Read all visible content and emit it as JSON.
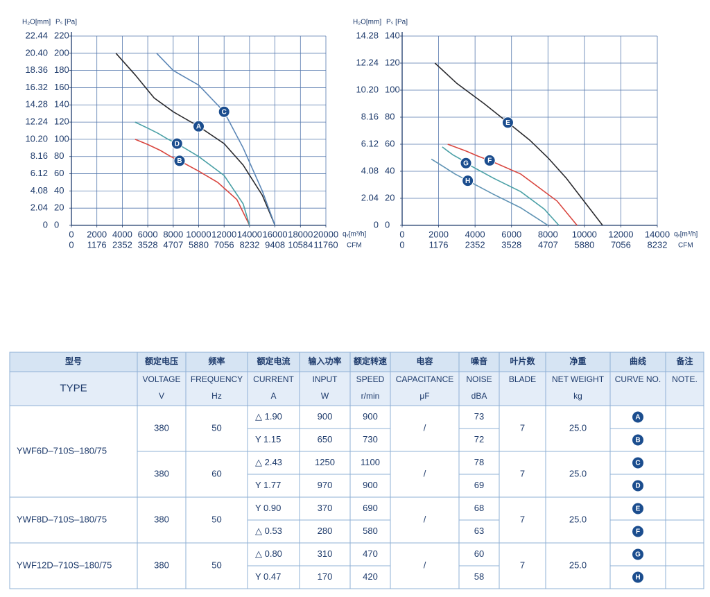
{
  "chart_data": [
    {
      "type": "line",
      "x_label": "qᵥ[m³/h]",
      "x2_label": "CFM",
      "y_label": "Pₛ [Pa]",
      "y2_label": "H₂O[mm]",
      "xlim": [
        0,
        20000
      ],
      "xticks": [
        0,
        2000,
        4000,
        6000,
        8000,
        10000,
        12000,
        14000,
        16000,
        18000,
        20000
      ],
      "x2lim": [
        0,
        11760
      ],
      "x2ticks": [
        0,
        1176,
        2352,
        3528,
        4707,
        5880,
        7056,
        8232,
        9408,
        10584,
        11760
      ],
      "ylim": [
        0,
        220
      ],
      "yticks": [
        0,
        20,
        40,
        60,
        80,
        100,
        120,
        140,
        160,
        180,
        200,
        220
      ],
      "y2lim": [
        0,
        22.44
      ],
      "y2ticks": [
        0,
        2.04,
        4.08,
        6.12,
        8.16,
        {
          "value": 10.2,
          "label": "10.20"
        },
        12.24,
        14.28,
        16.32,
        18.36,
        {
          "value": 20.4,
          "label": "20.40"
        },
        22.44
      ],
      "grid": true,
      "series": [
        {
          "name": "A",
          "color": "#2a2a2e",
          "x": [
            3500,
            5000,
            6500,
            8000,
            10000,
            12000,
            13500,
            15000,
            16000
          ],
          "values": [
            200,
            175,
            148,
            132,
            115,
            95,
            70,
            35,
            0
          ]
        },
        {
          "name": "B",
          "color": "#d9463f",
          "x": [
            5000,
            6000,
            7000,
            7800,
            8500,
            10000,
            11500,
            13000,
            14000
          ],
          "values": [
            100,
            94,
            87,
            80,
            75,
            63,
            50,
            30,
            0
          ]
        },
        {
          "name": "C",
          "color": "#5b86b6",
          "x": [
            6700,
            8000,
            10000,
            12000,
            13500,
            15000,
            16000
          ],
          "values": [
            200,
            180,
            163,
            132,
            90,
            40,
            0
          ]
        },
        {
          "name": "D",
          "color": "#4aa0a6",
          "x": [
            5000,
            6000,
            6800,
            7600,
            8300,
            10000,
            12000,
            13500,
            14000
          ],
          "values": [
            120,
            113,
            107,
            100,
            95,
            80,
            58,
            25,
            0
          ]
        }
      ]
    },
    {
      "type": "line",
      "x_label": "qᵥ[m³/h]",
      "x2_label": "CFM",
      "y_label": "Pₛ [Pa]",
      "y2_label": "H₂O[mm]",
      "xlim": [
        0,
        14000
      ],
      "xticks": [
        0,
        2000,
        4000,
        6000,
        8000,
        10000,
        12000,
        14000
      ],
      "x2lim": [
        0,
        8232
      ],
      "x2ticks": [
        0,
        1176,
        2352,
        3528,
        4707,
        5880,
        7056,
        8232
      ],
      "ylim": [
        0,
        140
      ],
      "yticks": [
        0,
        20,
        40,
        60,
        80,
        100,
        120,
        140
      ],
      "y2lim": [
        0,
        14.28
      ],
      "y2ticks": [
        0,
        2.04,
        4.08,
        6.12,
        8.16,
        {
          "value": 10.2,
          "label": "10.20"
        },
        12.24,
        14.28
      ],
      "grid": true,
      "series": [
        {
          "name": "E",
          "color": "#2a2a2e",
          "x": [
            1800,
            3000,
            4500,
            5800,
            5800,
            7000,
            8000,
            9000,
            11000
          ],
          "values": [
            120,
            105,
            90,
            76,
            76,
            63,
            50,
            35,
            0
          ]
        },
        {
          "name": "F",
          "color": "#d9463f",
          "x": [
            2500,
            3500,
            4200,
            4800,
            6500,
            8500,
            9600
          ],
          "values": [
            60,
            55,
            51,
            48,
            38,
            18,
            0
          ]
        },
        {
          "name": "G",
          "color": "#4aa0a6",
          "x": [
            2200,
            2500,
            2800,
            3200,
            3500,
            5000,
            6500,
            7800,
            8600
          ],
          "values": [
            58,
            55,
            52,
            49,
            46,
            35,
            25,
            12,
            0
          ]
        },
        {
          "name": "H",
          "color": "#5f93b4",
          "x": [
            1600,
            2200,
            2900,
            3600,
            5000,
            6500,
            8000
          ],
          "values": [
            49,
            44,
            38,
            33,
            23,
            13,
            0
          ]
        }
      ]
    }
  ],
  "table": {
    "header": {
      "type_zh": "型号",
      "type_en": "TYPE",
      "columns": [
        {
          "zh": "额定电压",
          "en": "VOLTAGE",
          "unit": "V"
        },
        {
          "zh": "频率",
          "en": "FREQUENCY",
          "unit": "Hz"
        },
        {
          "zh": "额定电流",
          "en": "CURRENT",
          "unit": "A"
        },
        {
          "zh": "输入功率",
          "en": "INPUT",
          "unit": "W"
        },
        {
          "zh": "额定转速",
          "en": "SPEED",
          "unit": "r/min"
        },
        {
          "zh": "电容",
          "en": "CAPACITANCE",
          "unit": "μF"
        },
        {
          "zh": "噪音",
          "en": "NOISE",
          "unit": "dBA"
        },
        {
          "zh": "叶片数",
          "en": "BLADE"
        },
        {
          "zh": "净重",
          "en": "NET WEIGHT",
          "unit": "kg"
        },
        {
          "zh": "曲线",
          "en": "CURVE NO."
        },
        {
          "zh": "备注",
          "en": "NOTE."
        }
      ]
    },
    "groups": [
      {
        "model": "YWF6D–710S–180/75",
        "blocks": [
          {
            "voltage": "380",
            "frequency": "50",
            "capacitance": "/",
            "blade": "7",
            "weight": "25.0",
            "rows": [
              {
                "current": "△ 1.90",
                "input": "900",
                "speed": "900",
                "noise": "73",
                "curve": "A"
              },
              {
                "current": "Y 1.15",
                "input": "650",
                "speed": "730",
                "noise": "72",
                "curve": "B"
              }
            ]
          },
          {
            "voltage": "380",
            "frequency": "60",
            "capacitance": "/",
            "blade": "7",
            "weight": "25.0",
            "rows": [
              {
                "current": "△ 2.43",
                "input": "1250",
                "speed": "1100",
                "noise": "78",
                "curve": "C"
              },
              {
                "current": "Y 1.77",
                "input": "970",
                "speed": "900",
                "noise": "69",
                "curve": "D"
              }
            ]
          }
        ]
      },
      {
        "model": "YWF8D–710S–180/75",
        "blocks": [
          {
            "voltage": "380",
            "frequency": "50",
            "capacitance": "/",
            "blade": "7",
            "weight": "25.0",
            "rows": [
              {
                "current": "Y 0.90",
                "input": "370",
                "speed": "690",
                "noise": "68",
                "curve": "E"
              },
              {
                "current": "△ 0.53",
                "input": "280",
                "speed": "580",
                "noise": "63",
                "curve": "F"
              }
            ]
          }
        ]
      },
      {
        "model": "YWF12D–710S–180/75",
        "blocks": [
          {
            "voltage": "380",
            "frequency": "50",
            "capacitance": "/",
            "blade": "7",
            "weight": "25.0",
            "rows": [
              {
                "current": "△ 0.80",
                "input": "310",
                "speed": "470",
                "noise": "60",
                "curve": "G"
              },
              {
                "current": "Y 0.47",
                "input": "170",
                "speed": "420",
                "noise": "58",
                "curve": "H"
              }
            ]
          }
        ]
      }
    ]
  }
}
